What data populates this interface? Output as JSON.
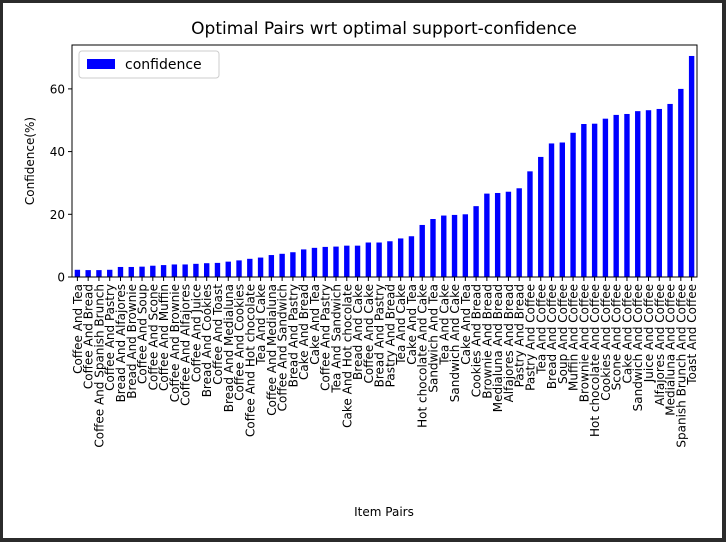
{
  "chart_data": {
    "type": "bar",
    "title": "Optimal Pairs wrt optimal support-confidence",
    "x_label": "Item Pairs",
    "y_label": "Confidence(%)",
    "categories": [
      "Coffee And Tea",
      "Coffee And Bread",
      "Coffee And Spanish Brunch",
      "Coffee And Pastry",
      "Bread And Alfajores",
      "Bread And Brownie",
      "Coffee And Soup",
      "Coffee And Scone",
      "Coffee And Muffin",
      "Coffee And Brownie",
      "Coffee And Alfajores",
      "Coffee And Juice",
      "Bread And Cookies",
      "Coffee And Toast",
      "Bread And Medialuna",
      "Coffee And Cookies",
      "Coffee And Hot chocolate",
      "Tea And Cake",
      "Coffee And Medialuna",
      "Coffee And Sandwich",
      "Bread And Pastry",
      "Cake And Bread",
      "Cake And Tea",
      "Coffee And Pastry",
      "Tea And Sandwich",
      "Cake And Hot chocolate",
      "Bread And Cake",
      "Coffee And Cake",
      "Bread And Pastry",
      "Pastry And Bread",
      "Tea And Cake",
      "Cake And Tea",
      "Hot chocolate And Cake",
      "Sandwich And Tea",
      "Tea And Cake",
      "Sandwich And Cake",
      "Cake And Tea",
      "Cookies And Bread",
      "Brownie And Bread",
      "Medialuna And Bread",
      "Alfajores And Bread",
      "Pastry And Bread",
      "Pastry And Coffee",
      "Tea And Coffee",
      "Bread And Coffee",
      "Soup And Coffee",
      "Muffin And Coffee",
      "Brownie And Coffee",
      "Hot chocolate And Coffee",
      "Cookies And Coffee",
      "Scone And Coffee",
      "Cake And Coffee",
      "Sandwich And Coffee",
      "Juice And Coffee",
      "Alfajores And Coffee",
      "Medialuna And Coffee",
      "Spanish Brunch And Coffee",
      "Toast And Coffee"
    ],
    "series": [
      {
        "name": "confidence",
        "color": "#0000ff",
        "values": [
          2.3,
          2.2,
          2.2,
          2.3,
          3.2,
          3.2,
          3.3,
          3.6,
          3.8,
          4.0,
          4.0,
          4.2,
          4.4,
          4.5,
          4.9,
          5.3,
          5.8,
          6.2,
          7.0,
          7.4,
          7.9,
          8.8,
          9.3,
          9.6,
          9.7,
          10.0,
          10.0,
          11.0,
          11.0,
          11.4,
          12.3,
          13.0,
          16.6,
          18.5,
          19.6,
          19.8,
          20.0,
          22.6,
          26.6,
          26.8,
          27.2,
          28.3,
          33.7,
          38.3,
          42.6,
          42.9,
          46.0,
          48.8,
          48.9,
          50.5,
          51.7,
          52.0,
          52.9,
          53.2,
          53.6,
          55.2,
          60.0,
          70.5
        ]
      }
    ],
    "ylim": [
      0,
      74
    ],
    "yticks": [
      0,
      20,
      40,
      60
    ],
    "legend": "upper left"
  }
}
